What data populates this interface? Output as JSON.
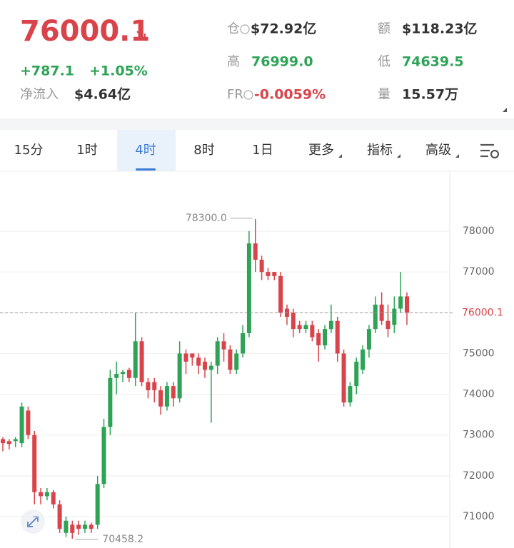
{
  "header": {
    "price": "76000.1",
    "change": "+787.1",
    "change_pct": "+1.05%",
    "net_inflow_label": "净流入",
    "net_inflow": "$4.64亿",
    "stats": [
      {
        "label": "仓",
        "value": "$72.92亿",
        "info": true
      },
      {
        "label": "额",
        "value": "$118.23亿"
      },
      {
        "label": "高",
        "value": "76999.0",
        "color": "#2ea356"
      },
      {
        "label": "低",
        "value": "74639.5",
        "color": "#2ea356"
      },
      {
        "label": "FR",
        "value": "-0.0059%",
        "color": "#d9434a",
        "info": true
      },
      {
        "label": "量",
        "value": "15.57万"
      }
    ]
  },
  "tabs": {
    "items": [
      "15分",
      "1时",
      "4时",
      "8时",
      "1日",
      "更多",
      "指标",
      "高级"
    ],
    "active": 2,
    "menus": [
      5,
      6,
      7
    ]
  },
  "chart_data": {
    "type": "candlestick",
    "open": [
      72900,
      72850,
      72850,
      72800,
      73600,
      73000,
      71600,
      71500,
      71600,
      71300,
      70600,
      70800,
      70800,
      70700,
      70800,
      70800,
      71800,
      73200,
      74400,
      74500,
      74600,
      74400,
      75300,
      74300,
      74300,
      74100,
      73700,
      74200,
      73900,
      75000,
      75000,
      74900,
      74800,
      74600,
      74700,
      75300,
      75100,
      74600,
      75000,
      75500,
      77700,
      77300,
      77000,
      77000,
      76900,
      76100,
      76000,
      75700,
      75600,
      75700,
      75500,
      75200,
      75600,
      75800,
      75000,
      73800,
      74200,
      74600,
      75100,
      75600,
      76200,
      75800,
      75700,
      76100,
      76400
    ],
    "close": [
      72800,
      72780,
      72900,
      73700,
      73000,
      71600,
      71500,
      71600,
      71300,
      70700,
      70900,
      70600,
      70700,
      70800,
      70700,
      71800,
      73200,
      74400,
      74500,
      74550,
      74400,
      75300,
      74300,
      74100,
      74100,
      73700,
      74200,
      73900,
      75000,
      74800,
      74900,
      74700,
      74600,
      74700,
      75300,
      75100,
      74600,
      75000,
      75500,
      77700,
      77300,
      77000,
      76900,
      76900,
      76000,
      75900,
      75600,
      75600,
      75700,
      75400,
      75200,
      75600,
      75800,
      75000,
      73800,
      74200,
      74800,
      75100,
      75600,
      76200,
      75800,
      75600,
      76100,
      76400,
      76000.1
    ],
    "high": [
      72950,
      72900,
      72950,
      73800,
      73700,
      73100,
      71700,
      71700,
      71650,
      71400,
      71000,
      70900,
      70900,
      70900,
      70850,
      72000,
      73400,
      74600,
      74800,
      74600,
      74650,
      76000,
      75400,
      74400,
      74400,
      74200,
      74300,
      74300,
      75300,
      75100,
      75000,
      75000,
      74900,
      74800,
      75400,
      75500,
      75200,
      75100,
      75700,
      78000,
      78300,
      77400,
      77100,
      77000,
      77000,
      76200,
      76100,
      75800,
      75800,
      75800,
      75600,
      75700,
      76200,
      75900,
      75100,
      74300,
      74900,
      75200,
      75700,
      76400,
      76500,
      76200,
      76400,
      77000,
      76500
    ],
    "low": [
      72600,
      72650,
      72700,
      72700,
      72900,
      71300,
      71300,
      71400,
      71200,
      70600,
      70500,
      70458.2,
      70550,
      70600,
      70600,
      70700,
      71700,
      73000,
      74000,
      74300,
      74300,
      74200,
      74200,
      73900,
      73800,
      73500,
      73600,
      73700,
      73800,
      74500,
      74700,
      74500,
      74400,
      73300,
      74500,
      74800,
      74500,
      74500,
      74900,
      75400,
      77000,
      76800,
      76800,
      76800,
      75900,
      75700,
      75400,
      75500,
      75500,
      75300,
      74800,
      75100,
      75500,
      74800,
      73700,
      73700,
      74000,
      74500,
      74900,
      75500,
      75700,
      75400,
      75500,
      76000,
      75700
    ],
    "up_color": "#2ea356",
    "down_color": "#d9434a",
    "ylim": [
      70230,
      79470
    ],
    "yticks": [
      71000,
      72000,
      73000,
      74000,
      75000,
      76000,
      77000,
      78000
    ],
    "grid": true,
    "last_price": 76000.1,
    "max_label": {
      "value": 78300,
      "label": "78300.0"
    },
    "min_label": {
      "value": 70458.2,
      "label": "70458.2"
    }
  }
}
